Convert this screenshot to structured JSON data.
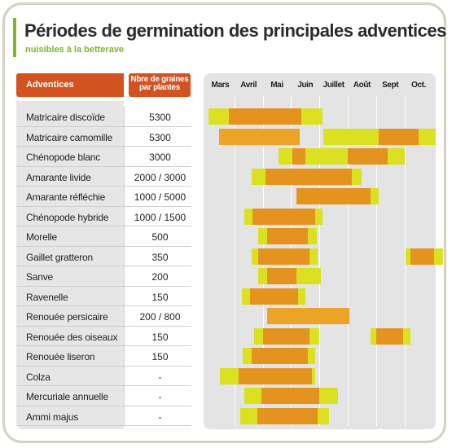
{
  "title": "Périodes de germination des principales adventices",
  "subtitle": "nuisibles à la betterave",
  "table_headers": {
    "adventices": "Adventices",
    "graines_line1": "Nbre de graines",
    "graines_line2": "par plantes"
  },
  "colors": {
    "header_orange": "#d2531f",
    "accent_green": "#7ab829",
    "period_yellow": "#dbe021",
    "period_orange": "#e5931f",
    "period_ochre": "#eba426"
  },
  "chart_data": {
    "type": "gantt",
    "title": "Périodes de germination des principales adventices",
    "subtitle": "nuisibles à la betterave",
    "months": [
      "Mars",
      "Avril",
      "Mai",
      "Juin",
      "Juillet",
      "Août",
      "Sept",
      "Oct."
    ],
    "x_unit": "month index (0 = début mars, 8 = fin octobre)",
    "legend": [],
    "rows": [
      {
        "name": "Matricaire discoïde",
        "graines": "5300",
        "spans": [
          {
            "start": 0.1,
            "end": 4.1,
            "kind": "yellow"
          },
          {
            "start": 0.8,
            "end": 3.35,
            "kind": "orange"
          }
        ]
      },
      {
        "name": "Matricaire camomille",
        "graines": "5300",
        "spans": [
          {
            "start": 0.45,
            "end": 3.3,
            "kind": "ochre"
          },
          {
            "start": 4.15,
            "end": 8.1,
            "kind": "yellow"
          },
          {
            "start": 6.1,
            "end": 7.5,
            "kind": "orange"
          }
        ]
      },
      {
        "name": "Chénopode blanc",
        "graines": "3000",
        "spans": [
          {
            "start": 2.55,
            "end": 7.0,
            "kind": "yellow"
          },
          {
            "start": 3.05,
            "end": 3.5,
            "kind": "orange"
          },
          {
            "start": 5.0,
            "end": 6.4,
            "kind": "orange"
          }
        ]
      },
      {
        "name": "Amarante livide",
        "graines": "2000 / 3000",
        "spans": [
          {
            "start": 1.6,
            "end": 5.5,
            "kind": "yellow"
          },
          {
            "start": 2.1,
            "end": 5.15,
            "kind": "orange"
          }
        ]
      },
      {
        "name": "Amarante réfléchie",
        "graines": "1000 / 5000",
        "spans": [
          {
            "start": 3.2,
            "end": 6.1,
            "kind": "yellow"
          },
          {
            "start": 3.2,
            "end": 5.8,
            "kind": "orange"
          }
        ]
      },
      {
        "name": "Chénopode hybride",
        "graines": "1000 / 1500",
        "spans": [
          {
            "start": 1.35,
            "end": 4.1,
            "kind": "yellow"
          },
          {
            "start": 1.65,
            "end": 3.85,
            "kind": "orange"
          }
        ]
      },
      {
        "name": "Morelle",
        "graines": "500",
        "spans": [
          {
            "start": 1.85,
            "end": 3.9,
            "kind": "yellow"
          },
          {
            "start": 2.15,
            "end": 3.6,
            "kind": "orange"
          }
        ]
      },
      {
        "name": "Gaillet gratteron",
        "graines": "350",
        "spans": [
          {
            "start": 1.6,
            "end": 3.95,
            "kind": "yellow"
          },
          {
            "start": 1.85,
            "end": 3.65,
            "kind": "orange"
          },
          {
            "start": 7.05,
            "end": 8.35,
            "kind": "yellow"
          },
          {
            "start": 7.2,
            "end": 8.05,
            "kind": "orange"
          }
        ]
      },
      {
        "name": "Sanve",
        "graines": "200",
        "spans": [
          {
            "start": 1.85,
            "end": 4.05,
            "kind": "yellow"
          },
          {
            "start": 2.15,
            "end": 3.2,
            "kind": "orange"
          }
        ]
      },
      {
        "name": "Ravenelle",
        "graines": "150",
        "spans": [
          {
            "start": 1.25,
            "end": 3.5,
            "kind": "yellow"
          },
          {
            "start": 1.55,
            "end": 3.25,
            "kind": "orange"
          }
        ]
      },
      {
        "name": "Renouée persicaire",
        "graines": "200 / 800",
        "spans": [
          {
            "start": 2.15,
            "end": 5.05,
            "kind": "ochre"
          }
        ]
      },
      {
        "name": "Renouée des oiseaux",
        "graines": "150",
        "spans": [
          {
            "start": 1.7,
            "end": 4.0,
            "kind": "yellow"
          },
          {
            "start": 2.0,
            "end": 3.65,
            "kind": "orange"
          },
          {
            "start": 5.8,
            "end": 7.2,
            "kind": "yellow"
          },
          {
            "start": 6.0,
            "end": 6.95,
            "kind": "orange"
          }
        ]
      },
      {
        "name": "Renouée liseron",
        "graines": "150",
        "spans": [
          {
            "start": 1.3,
            "end": 3.85,
            "kind": "yellow"
          },
          {
            "start": 1.6,
            "end": 3.6,
            "kind": "orange"
          }
        ]
      },
      {
        "name": "Colza",
        "graines": "-",
        "spans": [
          {
            "start": 0.5,
            "end": 3.85,
            "kind": "yellow"
          },
          {
            "start": 1.15,
            "end": 3.75,
            "kind": "orange"
          }
        ]
      },
      {
        "name": "Mercuriale annuelle",
        "graines": "-",
        "spans": [
          {
            "start": 1.35,
            "end": 4.65,
            "kind": "yellow"
          },
          {
            "start": 1.95,
            "end": 4.0,
            "kind": "orange"
          }
        ]
      },
      {
        "name": "Ammi majus",
        "graines": "-",
        "spans": [
          {
            "start": 1.2,
            "end": 4.35,
            "kind": "yellow"
          },
          {
            "start": 1.8,
            "end": 3.95,
            "kind": "orange"
          }
        ]
      }
    ]
  }
}
